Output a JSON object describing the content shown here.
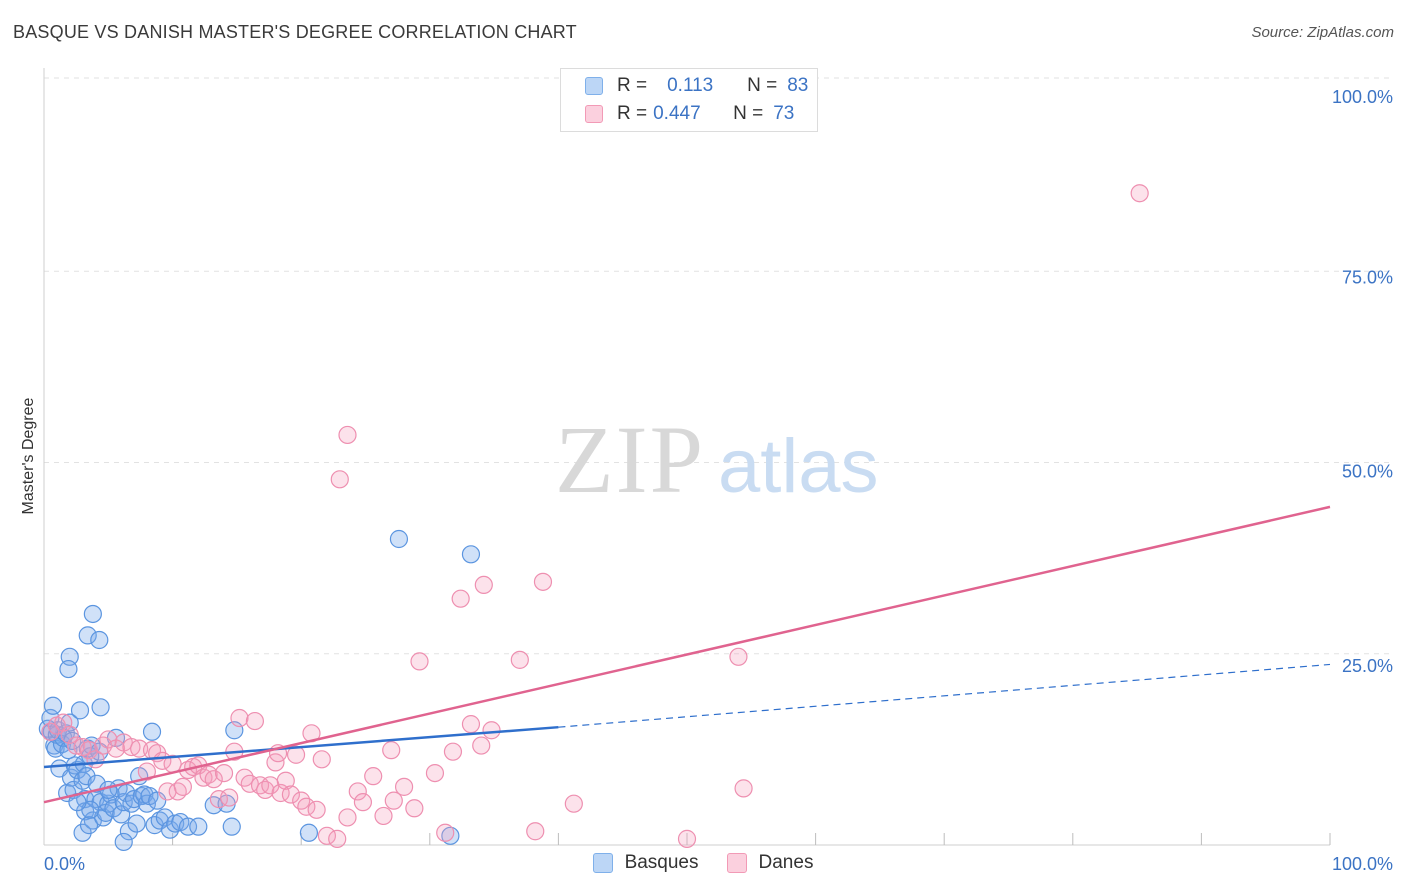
{
  "header": {
    "title": "BASQUE VS DANISH MASTER'S DEGREE CORRELATION CHART",
    "source": "Source: ZipAtlas.com"
  },
  "watermark": {
    "zip": "ZIP",
    "atlas": "atlas"
  },
  "legend": {
    "rows": [
      {
        "r_label": "R =",
        "r_value": "0.113",
        "n_label": "N =",
        "n_value": "83",
        "color": "#7fb0ea"
      },
      {
        "r_label": "R =",
        "r_value": "0.447",
        "n_label": "N =",
        "n_value": "73",
        "color": "#f29ab6"
      }
    ],
    "bottom": [
      "Basques",
      "Danes"
    ]
  },
  "chart_data": {
    "type": "scatter",
    "ylabel": "Master's Degree",
    "xlim": [
      0,
      100
    ],
    "ylim": [
      0,
      100
    ],
    "x_tick_labels": [
      "0.0%",
      "100.0%"
    ],
    "y_ticks": [
      {
        "value": 100,
        "label": "100.0%"
      },
      {
        "value": 75,
        "label": "75.0%"
      },
      {
        "value": 50,
        "label": "50.0%"
      },
      {
        "value": 25,
        "label": "25.0%"
      }
    ],
    "grid": true,
    "legend_position": "top-center",
    "series": [
      {
        "name": "Basques",
        "color": "#4a8fe0",
        "trend": {
          "x0": 0,
          "y0": 10.2,
          "x1": 40,
          "y1": 15.4,
          "dash_to_x": 100,
          "dash_to_y": 23.6,
          "color": "#2f6fcc"
        },
        "points": [
          [
            0.3,
            15.2
          ],
          [
            0.5,
            16.6
          ],
          [
            0.6,
            14.8
          ],
          [
            0.7,
            18.2
          ],
          [
            0.8,
            13.0
          ],
          [
            0.9,
            12.6
          ],
          [
            1.0,
            14.4
          ],
          [
            1.1,
            15.0
          ],
          [
            1.2,
            10.0
          ],
          [
            1.4,
            13.2
          ],
          [
            1.5,
            14.0
          ],
          [
            1.7,
            14.6
          ],
          [
            1.9,
            12.4
          ],
          [
            2.0,
            16.0
          ],
          [
            2.2,
            13.6
          ],
          [
            2.0,
            24.6
          ],
          [
            1.9,
            23.0
          ],
          [
            1.8,
            6.8
          ],
          [
            2.1,
            8.8
          ],
          [
            2.3,
            7.2
          ],
          [
            2.4,
            10.4
          ],
          [
            2.6,
            9.8
          ],
          [
            2.8,
            17.6
          ],
          [
            3.0,
            8.4
          ],
          [
            3.1,
            10.6
          ],
          [
            3.2,
            6.0
          ],
          [
            3.3,
            9.0
          ],
          [
            3.4,
            12.6
          ],
          [
            3.6,
            11.6
          ],
          [
            3.7,
            13.0
          ],
          [
            3.2,
            4.4
          ],
          [
            3.0,
            1.6
          ],
          [
            3.8,
            3.2
          ],
          [
            4.0,
            6.0
          ],
          [
            4.1,
            8.0
          ],
          [
            4.3,
            12.2
          ],
          [
            3.5,
            2.6
          ],
          [
            4.4,
            5.6
          ],
          [
            4.6,
            3.6
          ],
          [
            4.8,
            4.2
          ],
          [
            5.0,
            5.4
          ],
          [
            5.2,
            6.6
          ],
          [
            5.4,
            4.8
          ],
          [
            5.6,
            14.0
          ],
          [
            5.8,
            7.4
          ],
          [
            6.0,
            4.0
          ],
          [
            6.2,
            5.6
          ],
          [
            6.4,
            6.8
          ],
          [
            6.6,
            1.8
          ],
          [
            6.8,
            5.4
          ],
          [
            7.0,
            6.0
          ],
          [
            7.2,
            2.8
          ],
          [
            7.4,
            9.0
          ],
          [
            7.6,
            6.4
          ],
          [
            7.8,
            6.6
          ],
          [
            8.0,
            5.4
          ],
          [
            3.4,
            27.4
          ],
          [
            4.3,
            26.8
          ],
          [
            3.8,
            30.2
          ],
          [
            4.4,
            18.0
          ],
          [
            8.2,
            6.4
          ],
          [
            8.4,
            14.8
          ],
          [
            8.6,
            2.6
          ],
          [
            8.8,
            5.8
          ],
          [
            9.0,
            3.2
          ],
          [
            9.4,
            3.6
          ],
          [
            9.8,
            2.0
          ],
          [
            10.2,
            2.8
          ],
          [
            10.6,
            3.0
          ],
          [
            11.2,
            2.4
          ],
          [
            12.0,
            2.4
          ],
          [
            13.2,
            5.2
          ],
          [
            14.2,
            5.4
          ],
          [
            14.6,
            2.4
          ],
          [
            14.8,
            15.0
          ],
          [
            20.6,
            1.6
          ],
          [
            27.6,
            40.0
          ],
          [
            33.2,
            38.0
          ],
          [
            31.6,
            1.2
          ],
          [
            6.2,
            0.4
          ],
          [
            3.6,
            4.6
          ],
          [
            5.0,
            7.2
          ],
          [
            2.6,
            5.6
          ]
        ]
      },
      {
        "name": "Danes",
        "color": "#f29ab6",
        "trend": {
          "x0": 0,
          "y0": 5.6,
          "x1": 100,
          "y1": 44.2,
          "color": "#e0638f"
        },
        "points": [
          [
            0.5,
            14.8
          ],
          [
            1.0,
            15.6
          ],
          [
            1.5,
            16.0
          ],
          [
            2.0,
            14.4
          ],
          [
            2.5,
            13.0
          ],
          [
            3.0,
            12.8
          ],
          [
            3.5,
            12.4
          ],
          [
            4.0,
            11.2
          ],
          [
            4.6,
            13.0
          ],
          [
            5.0,
            13.8
          ],
          [
            5.6,
            12.6
          ],
          [
            6.2,
            13.4
          ],
          [
            6.8,
            12.8
          ],
          [
            7.4,
            12.6
          ],
          [
            8.0,
            9.6
          ],
          [
            8.4,
            12.4
          ],
          [
            8.8,
            12.0
          ],
          [
            9.2,
            11.0
          ],
          [
            9.6,
            7.0
          ],
          [
            10.0,
            10.6
          ],
          [
            10.4,
            7.0
          ],
          [
            10.8,
            7.6
          ],
          [
            11.2,
            9.8
          ],
          [
            11.6,
            10.2
          ],
          [
            12.0,
            10.4
          ],
          [
            12.4,
            8.8
          ],
          [
            12.8,
            9.2
          ],
          [
            13.2,
            8.6
          ],
          [
            13.6,
            6.0
          ],
          [
            14.0,
            9.4
          ],
          [
            14.4,
            6.2
          ],
          [
            14.8,
            12.2
          ],
          [
            15.2,
            16.6
          ],
          [
            15.6,
            8.8
          ],
          [
            16.0,
            8.0
          ],
          [
            16.4,
            16.2
          ],
          [
            16.8,
            7.8
          ],
          [
            17.2,
            7.2
          ],
          [
            17.6,
            7.8
          ],
          [
            18.0,
            10.8
          ],
          [
            18.4,
            6.8
          ],
          [
            18.8,
            8.4
          ],
          [
            19.2,
            6.6
          ],
          [
            19.6,
            11.8
          ],
          [
            20.0,
            5.8
          ],
          [
            20.4,
            5.0
          ],
          [
            20.8,
            14.6
          ],
          [
            21.2,
            4.6
          ],
          [
            21.6,
            11.2
          ],
          [
            22.0,
            1.2
          ],
          [
            22.8,
            0.8
          ],
          [
            23.6,
            3.6
          ],
          [
            24.4,
            7.0
          ],
          [
            24.8,
            5.6
          ],
          [
            25.6,
            9.0
          ],
          [
            26.4,
            3.8
          ],
          [
            27.2,
            5.8
          ],
          [
            28.0,
            7.6
          ],
          [
            28.8,
            4.8
          ],
          [
            30.4,
            9.4
          ],
          [
            31.2,
            1.6
          ],
          [
            31.8,
            12.2
          ],
          [
            33.2,
            15.8
          ],
          [
            34.0,
            13.0
          ],
          [
            34.8,
            15.0
          ],
          [
            23.6,
            53.6
          ],
          [
            23.0,
            47.8
          ],
          [
            32.4,
            32.2
          ],
          [
            34.2,
            34.0
          ],
          [
            38.8,
            34.4
          ],
          [
            37.0,
            24.2
          ],
          [
            29.2,
            24.0
          ],
          [
            50.0,
            0.8
          ]
        ],
        "extra_points": [
          [
            38.2,
            1.8
          ],
          [
            41.2,
            5.4
          ],
          [
            54.0,
            24.6
          ],
          [
            54.4,
            7.4
          ],
          [
            85.2,
            85.2
          ],
          [
            18.2,
            12.0
          ],
          [
            27.0,
            12.4
          ]
        ]
      }
    ]
  }
}
